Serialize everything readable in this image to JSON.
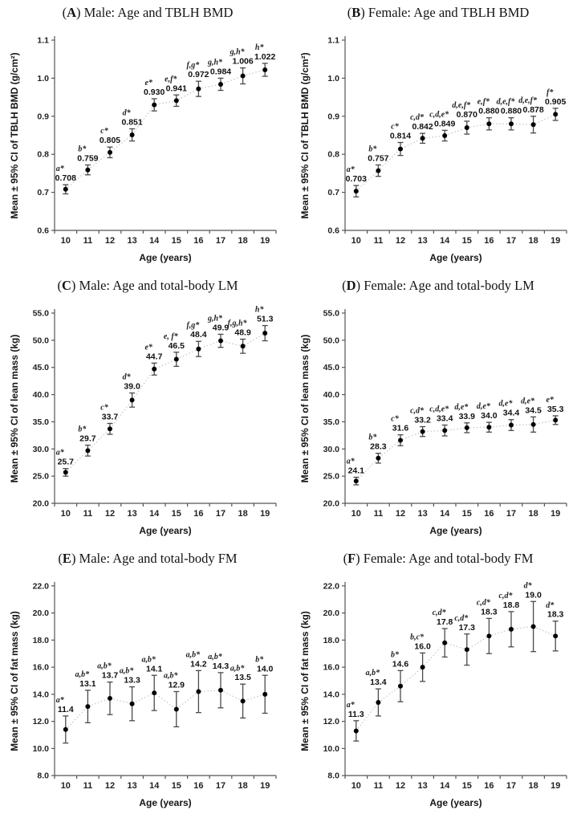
{
  "style": {
    "point_color": "#000000",
    "error_bar_color": "#4a4a4a",
    "trend_line_color": "#c4c4c4",
    "axis_color": "#555555",
    "text_color": "#141414"
  },
  "chart_data": [
    {
      "type": "scatter",
      "panel": "A",
      "title": "Male: Age and TBLH BMD",
      "ylabel": "Mean ± 95% CI of TBLH BMD (g/cm²)",
      "xlabel": "Age (years)",
      "ylim": [
        0.6,
        1.1
      ],
      "ytick_step": 0.1,
      "grid": false,
      "points": [
        {
          "age": 10,
          "mean": 0.708,
          "label": "0.708",
          "ci": 0.012,
          "sig": "a*"
        },
        {
          "age": 11,
          "mean": 0.759,
          "label": "0.759",
          "ci": 0.013,
          "sig": "b*"
        },
        {
          "age": 12,
          "mean": 0.805,
          "label": "0.805",
          "ci": 0.014,
          "sig": "c*"
        },
        {
          "age": 13,
          "mean": 0.851,
          "label": "0.851",
          "ci": 0.016,
          "sig": "d*"
        },
        {
          "age": 14,
          "mean": 0.93,
          "label": "0.930",
          "ci": 0.016,
          "sig": "e*"
        },
        {
          "age": 15,
          "mean": 0.941,
          "label": "0.941",
          "ci": 0.015,
          "sig": "e,f*"
        },
        {
          "age": 16,
          "mean": 0.972,
          "label": "0.972",
          "ci": 0.02,
          "sig": "f,g*"
        },
        {
          "age": 17,
          "mean": 0.984,
          "label": "0.984",
          "ci": 0.016,
          "sig": "g,h*"
        },
        {
          "age": 18,
          "mean": 1.006,
          "label": "1.006",
          "ci": 0.021,
          "sig": "g,h*"
        },
        {
          "age": 19,
          "mean": 1.022,
          "label": "1.022",
          "ci": 0.017,
          "sig": "h*"
        }
      ]
    },
    {
      "type": "scatter",
      "panel": "B",
      "title": "Female: Age and TBLH BMD",
      "ylabel": "Mean ± 95% CI of TBLH BMD (g/cm²)",
      "xlabel": "Age (years)",
      "ylim": [
        0.6,
        1.1
      ],
      "ytick_step": 0.1,
      "grid": false,
      "points": [
        {
          "age": 10,
          "mean": 0.703,
          "label": "0.703",
          "ci": 0.015,
          "sig": "a*"
        },
        {
          "age": 11,
          "mean": 0.757,
          "label": "0.757",
          "ci": 0.015,
          "sig": "b*"
        },
        {
          "age": 12,
          "mean": 0.814,
          "label": "0.814",
          "ci": 0.017,
          "sig": "c*"
        },
        {
          "age": 13,
          "mean": 0.842,
          "label": "0.842",
          "ci": 0.013,
          "sig": "c,d*"
        },
        {
          "age": 14,
          "mean": 0.849,
          "label": "0.849",
          "ci": 0.014,
          "sig": "c,d,e*"
        },
        {
          "age": 15,
          "mean": 0.87,
          "label": "0.870",
          "ci": 0.017,
          "sig": "d,e,f*"
        },
        {
          "age": 16,
          "mean": 0.88,
          "label": "0.880",
          "ci": 0.016,
          "sig": "e,f*"
        },
        {
          "age": 17,
          "mean": 0.88,
          "label": "0.880",
          "ci": 0.016,
          "sig": "d,e,f*"
        },
        {
          "age": 18,
          "mean": 0.878,
          "label": "0.878",
          "ci": 0.022,
          "sig": "d,e,f*"
        },
        {
          "age": 19,
          "mean": 0.905,
          "label": "0.905",
          "ci": 0.016,
          "sig": "f*"
        }
      ]
    },
    {
      "type": "scatter",
      "panel": "C",
      "title": "Male: Age and total-body LM",
      "ylabel": "Mean ± 95% CI of lean mass (kg)",
      "xlabel": "Age (years)",
      "ylim": [
        20.0,
        55.0
      ],
      "ytick_step": 5.0,
      "grid": false,
      "points": [
        {
          "age": 10,
          "mean": 25.7,
          "label": "25.7",
          "ci": 0.7,
          "sig": "a*"
        },
        {
          "age": 11,
          "mean": 29.7,
          "label": "29.7",
          "ci": 1.0,
          "sig": "b*"
        },
        {
          "age": 12,
          "mean": 33.7,
          "label": "33.7",
          "ci": 1.0,
          "sig": "c*"
        },
        {
          "age": 13,
          "mean": 39.0,
          "label": "39.0",
          "ci": 1.3,
          "sig": "d*"
        },
        {
          "age": 14,
          "mean": 44.7,
          "label": "44.7",
          "ci": 1.1,
          "sig": "e*"
        },
        {
          "age": 15,
          "mean": 46.5,
          "label": "46.5",
          "ci": 1.3,
          "sig": "e, f*"
        },
        {
          "age": 16,
          "mean": 48.4,
          "label": "48.4",
          "ci": 1.4,
          "sig": "f,g*"
        },
        {
          "age": 17,
          "mean": 49.9,
          "label": "49.9",
          "ci": 1.2,
          "sig": "g,h*"
        },
        {
          "age": 18,
          "mean": 48.9,
          "label": "48.9",
          "ci": 1.3,
          "sig": "f,g,h*"
        },
        {
          "age": 19,
          "mean": 51.3,
          "label": "51.3",
          "ci": 1.4,
          "sig": "h*"
        }
      ]
    },
    {
      "type": "scatter",
      "panel": "D",
      "title": "Female: Age and total-body LM",
      "ylabel": "Mean ± 95% CI of lean mass (kg)",
      "xlabel": "Age (years)",
      "ylim": [
        20.0,
        55.0
      ],
      "ytick_step": 5.0,
      "grid": false,
      "points": [
        {
          "age": 10,
          "mean": 24.1,
          "label": "24.1",
          "ci": 0.7,
          "sig": "a*"
        },
        {
          "age": 11,
          "mean": 28.3,
          "label": "28.3",
          "ci": 0.9,
          "sig": "b*"
        },
        {
          "age": 12,
          "mean": 31.6,
          "label": "31.6",
          "ci": 1.0,
          "sig": "c*"
        },
        {
          "age": 13,
          "mean": 33.2,
          "label": "33.2",
          "ci": 0.9,
          "sig": "c,d*"
        },
        {
          "age": 14,
          "mean": 33.4,
          "label": "33.4",
          "ci": 1.0,
          "sig": "c,d,e*"
        },
        {
          "age": 15,
          "mean": 33.9,
          "label": "33.9",
          "ci": 0.9,
          "sig": "d,e*"
        },
        {
          "age": 16,
          "mean": 34.0,
          "label": "34.0",
          "ci": 0.9,
          "sig": "d,e*"
        },
        {
          "age": 17,
          "mean": 34.4,
          "label": "34.4",
          "ci": 1.0,
          "sig": "d,e*"
        },
        {
          "age": 18,
          "mean": 34.5,
          "label": "34.5",
          "ci": 1.4,
          "sig": "d,e*"
        },
        {
          "age": 19,
          "mean": 35.3,
          "label": "35.3",
          "ci": 0.8,
          "sig": "e*"
        }
      ]
    },
    {
      "type": "scatter",
      "panel": "E",
      "title": "Male: Age and total-body FM",
      "ylabel": "Mean ± 95% CI of fat mass (kg)",
      "xlabel": "Age (years)",
      "ylim": [
        8.0,
        22.0
      ],
      "ytick_step": 2.0,
      "grid": false,
      "points": [
        {
          "age": 10,
          "mean": 11.4,
          "label": "11.4",
          "ci": 1.0,
          "sig": "a*"
        },
        {
          "age": 11,
          "mean": 13.1,
          "label": "13.1",
          "ci": 1.2,
          "sig": "a,b*"
        },
        {
          "age": 12,
          "mean": 13.7,
          "label": "13.7",
          "ci": 1.2,
          "sig": "a,b*"
        },
        {
          "age": 13,
          "mean": 13.3,
          "label": "13.3",
          "ci": 1.25,
          "sig": "a,b*"
        },
        {
          "age": 14,
          "mean": 14.1,
          "label": "14.1",
          "ci": 1.3,
          "sig": "a,b*"
        },
        {
          "age": 15,
          "mean": 12.9,
          "label": "12.9",
          "ci": 1.3,
          "sig": "a,b*"
        },
        {
          "age": 16,
          "mean": 14.2,
          "label": "14.2",
          "ci": 1.55,
          "sig": "a,b*"
        },
        {
          "age": 17,
          "mean": 14.3,
          "label": "14.3",
          "ci": 1.3,
          "sig": "a,b*"
        },
        {
          "age": 18,
          "mean": 13.5,
          "label": "13.5",
          "ci": 1.25,
          "sig": "a,b*"
        },
        {
          "age": 19,
          "mean": 14.0,
          "label": "14.0",
          "ci": 1.4,
          "sig": "b*"
        }
      ]
    },
    {
      "type": "scatter",
      "panel": "F",
      "title": "Female: Age and total-body FM",
      "ylabel": "Mean ± 95% CI of fat mass (kg)",
      "xlabel": "Age (years)",
      "ylim": [
        8.0,
        22.0
      ],
      "ytick_step": 2.0,
      "grid": false,
      "points": [
        {
          "age": 10,
          "mean": 11.3,
          "label": "11.3",
          "ci": 0.75,
          "sig": "a*"
        },
        {
          "age": 11,
          "mean": 13.4,
          "label": "13.4",
          "ci": 1.0,
          "sig": "a,b*"
        },
        {
          "age": 12,
          "mean": 14.6,
          "label": "14.6",
          "ci": 1.15,
          "sig": "b*"
        },
        {
          "age": 13,
          "mean": 16.0,
          "label": "16.0",
          "ci": 1.05,
          "sig": "b,c*"
        },
        {
          "age": 14,
          "mean": 17.8,
          "label": "17.8",
          "ci": 1.05,
          "sig": "c,d*"
        },
        {
          "age": 15,
          "mean": 17.3,
          "label": "17.3",
          "ci": 1.15,
          "sig": "c,d*"
        },
        {
          "age": 16,
          "mean": 18.3,
          "label": "18.3",
          "ci": 1.3,
          "sig": "c,d*"
        },
        {
          "age": 17,
          "mean": 18.8,
          "label": "18.8",
          "ci": 1.3,
          "sig": "c,d*"
        },
        {
          "age": 18,
          "mean": 19.0,
          "label": "19.0",
          "ci": 1.85,
          "sig": "d*"
        },
        {
          "age": 19,
          "mean": 18.3,
          "label": "18.3",
          "ci": 1.1,
          "sig": "d*"
        }
      ]
    }
  ]
}
